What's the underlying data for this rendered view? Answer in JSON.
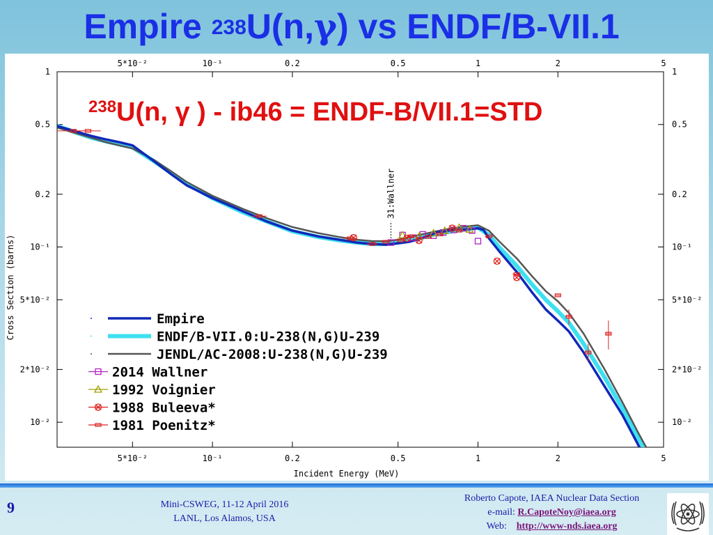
{
  "slide": {
    "title_pre": "Empire ",
    "title_sup": "238",
    "title_mid": "U(n,",
    "title_gamma": "γ",
    "title_post": ") vs ENDF/B-VII.1",
    "page_number": "9",
    "meeting_line1": "Mini-CSWEG, 11-12 April 2016",
    "meeting_line2": "LANL, Los Alamos, USA",
    "contact_name": "Roberto Capote, IAEA Nuclear Data Section",
    "contact_email_label": "e-mail:",
    "contact_email": "R.CapoteNoy@iaea.org",
    "contact_web_label": "Web:",
    "contact_web": "http://www-nds.iaea.org",
    "colors": {
      "title": "#1a2fe6",
      "chart_title": "#e01010",
      "footer_text": "#1a1aa8",
      "link": "#7a1478"
    }
  },
  "chart_data": {
    "type": "line",
    "title_sup": "238",
    "title_text": "U(n, γ ) - ib46 = ENDF-B/VII.1=STD",
    "xlabel": "Incident Energy (MeV)",
    "ylabel": "Cross Section (barns)",
    "x_scale": "log",
    "y_scale": "log",
    "xlim": [
      0.026,
      5
    ],
    "ylim": [
      0.0072,
      1
    ],
    "x_ticks": [
      {
        "value": 0.05,
        "label": "5*10⁻²"
      },
      {
        "value": 0.1,
        "label": "10⁻¹"
      },
      {
        "value": 0.2,
        "label": "0.2"
      },
      {
        "value": 0.5,
        "label": "0.5"
      },
      {
        "value": 1,
        "label": "1"
      },
      {
        "value": 2,
        "label": "2"
      },
      {
        "value": 5,
        "label": "5"
      }
    ],
    "y_ticks": [
      {
        "value": 1,
        "label": "1"
      },
      {
        "value": 0.5,
        "label": "0.5"
      },
      {
        "value": 0.2,
        "label": "0.2"
      },
      {
        "value": 0.1,
        "label": "10⁻¹"
      },
      {
        "value": 0.05,
        "label": "5*10⁻²"
      },
      {
        "value": 0.02,
        "label": "2*10⁻²"
      },
      {
        "value": 0.01,
        "label": "10⁻²"
      }
    ],
    "annotation": {
      "text": "31:Wallner",
      "x": 0.47
    },
    "legend_placement": "bottom-left",
    "series": [
      {
        "name": "Empire",
        "kind": "line",
        "color": "#1028b8",
        "width": 3.5,
        "x": [
          0.026,
          0.03,
          0.035,
          0.04,
          0.045,
          0.05,
          0.06,
          0.07,
          0.08,
          0.1,
          0.13,
          0.16,
          0.2,
          0.25,
          0.3,
          0.35,
          0.4,
          0.45,
          0.5,
          0.55,
          0.6,
          0.65,
          0.7,
          0.8,
          0.9,
          1.0,
          1.05,
          1.1,
          1.2,
          1.4,
          1.6,
          1.8,
          2.0,
          2.2,
          2.5,
          3.0,
          3.5,
          4.0,
          4.2
        ],
        "values": [
          0.49,
          0.46,
          0.43,
          0.41,
          0.395,
          0.38,
          0.31,
          0.26,
          0.225,
          0.19,
          0.16,
          0.14,
          0.124,
          0.115,
          0.11,
          0.106,
          0.104,
          0.103,
          0.105,
          0.107,
          0.111,
          0.116,
          0.121,
          0.125,
          0.126,
          0.128,
          0.125,
          0.112,
          0.095,
          0.072,
          0.055,
          0.044,
          0.038,
          0.033,
          0.025,
          0.016,
          0.011,
          0.0075,
          0.0065
        ]
      },
      {
        "name": "ENDF/B-VII.0:U-238(N,G)U-239",
        "kind": "line",
        "color": "#3ee0f0",
        "width": 6,
        "x": [
          0.026,
          0.03,
          0.035,
          0.04,
          0.05,
          0.06,
          0.07,
          0.08,
          0.1,
          0.13,
          0.16,
          0.2,
          0.25,
          0.3,
          0.35,
          0.4,
          0.45,
          0.5,
          0.6,
          0.7,
          0.8,
          0.9,
          1.0,
          1.1,
          1.2,
          1.4,
          1.6,
          1.8,
          2.0,
          2.2,
          2.5,
          3.0,
          3.5,
          4.0,
          4.3
        ],
        "values": [
          0.49,
          0.455,
          0.42,
          0.4,
          0.37,
          0.31,
          0.265,
          0.23,
          0.19,
          0.158,
          0.14,
          0.123,
          0.114,
          0.109,
          0.106,
          0.104,
          0.104,
          0.106,
          0.112,
          0.119,
          0.123,
          0.126,
          0.129,
          0.117,
          0.1,
          0.078,
          0.061,
          0.05,
          0.043,
          0.037,
          0.028,
          0.018,
          0.012,
          0.0082,
          0.0068
        ]
      },
      {
        "name": "JENDL/AC-2008:U-238(N,G)U-239",
        "kind": "line",
        "color": "#555555",
        "width": 2.5,
        "x": [
          0.026,
          0.03,
          0.035,
          0.04,
          0.05,
          0.06,
          0.07,
          0.08,
          0.1,
          0.13,
          0.16,
          0.2,
          0.25,
          0.3,
          0.35,
          0.4,
          0.45,
          0.5,
          0.6,
          0.7,
          0.8,
          0.9,
          1.0,
          1.1,
          1.2,
          1.4,
          1.6,
          1.8,
          2.0,
          2.2,
          2.5,
          3.0,
          3.5,
          4.0,
          4.3
        ],
        "values": [
          0.48,
          0.45,
          0.42,
          0.395,
          0.365,
          0.315,
          0.27,
          0.235,
          0.196,
          0.165,
          0.146,
          0.13,
          0.12,
          0.114,
          0.11,
          0.108,
          0.108,
          0.11,
          0.117,
          0.123,
          0.128,
          0.131,
          0.133,
          0.124,
          0.108,
          0.086,
          0.068,
          0.056,
          0.049,
          0.042,
          0.032,
          0.02,
          0.013,
          0.0088,
          0.0072
        ]
      },
      {
        "name": "2014 Wallner",
        "kind": "points",
        "marker": "square",
        "color": "#b020c0",
        "x": [
          0.47,
          0.52,
          0.57,
          0.62,
          0.68,
          0.74,
          0.81,
          0.88,
          0.95,
          1.0
        ],
        "values": [
          0.106,
          0.117,
          0.113,
          0.118,
          0.116,
          0.121,
          0.125,
          0.128,
          0.124,
          0.108
        ]
      },
      {
        "name": "1992 Voignier",
        "kind": "points",
        "marker": "triangle",
        "color": "#a0a000",
        "x": [
          0.52,
          0.6,
          0.68,
          0.75,
          0.85,
          0.93
        ],
        "values": [
          0.117,
          0.115,
          0.12,
          0.124,
          0.129,
          0.126
        ]
      },
      {
        "name": "1988 Buleeva*",
        "kind": "points",
        "marker": "cross",
        "color": "#e02020",
        "x": [
          0.34,
          0.54,
          0.6,
          0.8,
          1.18,
          1.4
        ],
        "values": [
          0.113,
          0.112,
          0.109,
          0.128,
          0.083,
          0.067
        ]
      },
      {
        "name": "1981 Poenitz*",
        "kind": "points",
        "marker": "bar",
        "color": "#e02020",
        "x": [
          0.03,
          0.034,
          0.15,
          0.33,
          0.4,
          0.45,
          0.51,
          0.56,
          0.65,
          0.72,
          0.85,
          1.1,
          1.4,
          2.0,
          2.2,
          2.6,
          3.1
        ],
        "values": [
          0.46,
          0.46,
          0.15,
          0.112,
          0.104,
          0.107,
          0.109,
          0.115,
          0.114,
          0.118,
          0.124,
          0.115,
          0.07,
          0.053,
          0.04,
          0.025,
          0.032
        ],
        "err": [
          0,
          0,
          0,
          0,
          0,
          0,
          0,
          0,
          0,
          0,
          0,
          0,
          0,
          0,
          0.004,
          0.003,
          0.006
        ],
        "xerr": [
          0.004,
          0.004,
          0.01,
          0.02,
          0.02,
          0.02,
          0.02,
          0.02,
          0.02,
          0.02,
          0.02,
          0.04,
          0.05,
          0.05,
          0.05,
          0.05,
          0.08
        ]
      }
    ]
  }
}
